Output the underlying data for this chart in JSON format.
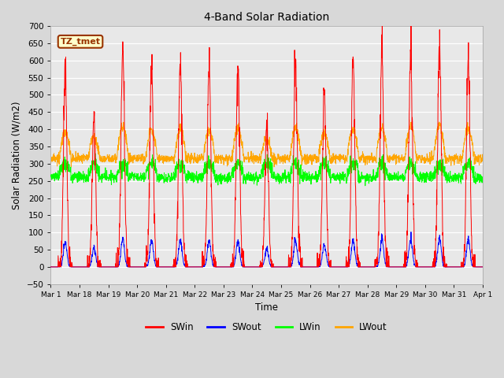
{
  "title": "4-Band Solar Radiation",
  "xlabel": "Time",
  "ylabel": "Solar Radiation (W/m2)",
  "ylim": [
    -50,
    700
  ],
  "bg_color": "#d8d8d8",
  "plot_bg_color": "#e8e8e8",
  "grid_color": "#ffffff",
  "annotation_label": "TZ_tmet",
  "annotation_bg": "#ffffcc",
  "annotation_border": "#993300",
  "series_colors": {
    "SWin": "#ff0000",
    "SWout": "#0000ff",
    "LWin": "#00ff00",
    "LWout": "#ffa500"
  },
  "day_labels": [
    "Mar 1",
    "Mar 18",
    "Mar 19",
    "Mar 20",
    "Mar 21",
    "Mar 22",
    "Mar 23",
    "Mar 24",
    "Mar 25",
    "Mar 26",
    "Mar 27",
    "Mar 28",
    "Mar 29",
    "Mar 30",
    "Mar 31",
    "Apr 1"
  ],
  "n_days": 15,
  "ppd": 144
}
